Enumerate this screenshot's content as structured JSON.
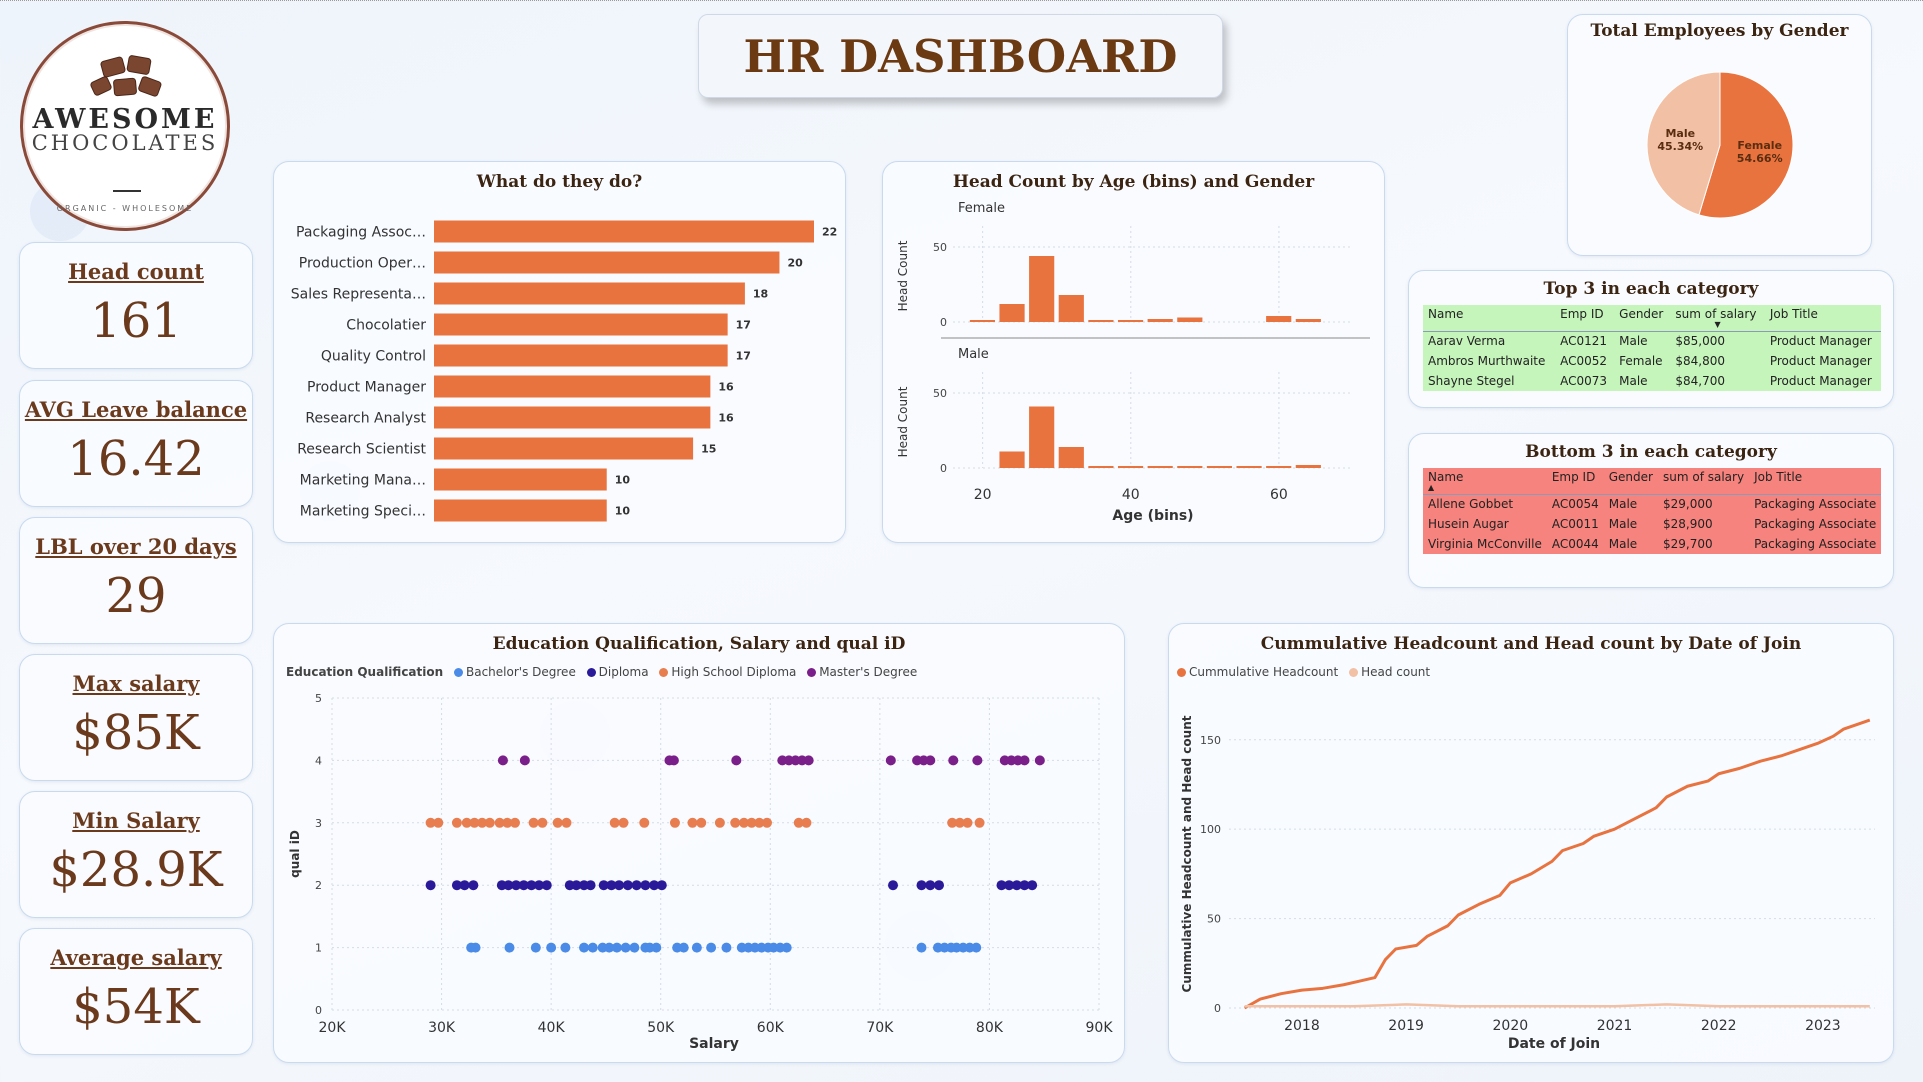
{
  "header": {
    "title": "HR DASHBOARD"
  },
  "logo": {
    "brand_line1": "AWESOME",
    "brand_line2": "CHOCOLATES",
    "tagline": "ORGANIC - WHOLESOME"
  },
  "kpis": [
    {
      "label": "Head count",
      "value": "161"
    },
    {
      "label": "AVG Leave balance",
      "value": "16.42"
    },
    {
      "label": "LBL over 20 days",
      "value": "29"
    },
    {
      "label": "Max salary",
      "value": "$85K"
    },
    {
      "label": "Min Salary",
      "value": "$28.9K"
    },
    {
      "label": "Average salary",
      "value": "$54K"
    }
  ],
  "colors": {
    "accent": "#e8733f",
    "accent_light": "#f2c0a4",
    "bachelor": "#4a8be8",
    "diploma": "#2a1a9a",
    "high_school": "#e87d4f",
    "masters": "#7a1f8a",
    "title_brown": "#6b3a12",
    "top_green": "#c6f5bc",
    "bottom_red": "#f6837d"
  },
  "tables": {
    "top": {
      "title": "Top 3 in each category",
      "headers": [
        "Name",
        "Emp ID",
        "Gender",
        "sum of salary",
        "Job Title"
      ],
      "rows": [
        [
          "Aarav Verma",
          "AC0121",
          "Male",
          "$85,000",
          "Product Manager"
        ],
        [
          "Ambros Murthwaite",
          "AC0052",
          "Female",
          "$84,800",
          "Product Manager"
        ],
        [
          "Shayne Stegel",
          "AC0073",
          "Male",
          "$84,700",
          "Product Manager"
        ]
      ]
    },
    "bottom": {
      "title": "Bottom 3 in each category",
      "headers": [
        "Name",
        "Emp ID",
        "Gender",
        "sum of salary",
        "Job Title"
      ],
      "rows": [
        [
          "Allene Gobbet",
          "AC0054",
          "Male",
          "$29,000",
          "Packaging Associate"
        ],
        [
          "Husein Augar",
          "AC0011",
          "Male",
          "$28,900",
          "Packaging Associate"
        ],
        [
          "Virginia McConville",
          "AC0044",
          "Male",
          "$29,700",
          "Packaging Associate"
        ]
      ]
    }
  },
  "chart_data": [
    {
      "type": "bar",
      "title": "What do they do?",
      "categories": [
        "Packaging Assoc…",
        "Production Oper…",
        "Sales Representa…",
        "Chocolatier",
        "Quality Control",
        "Product Manager",
        "Research Analyst",
        "Research Scientist",
        "Marketing Mana…",
        "Marketing Speci…"
      ],
      "values": [
        22,
        20,
        18,
        17,
        17,
        16,
        16,
        15,
        10,
        10
      ],
      "xlim": [
        0,
        22
      ]
    },
    {
      "type": "bar",
      "title": "Head Count by Age (bins) and Gender",
      "xlabel": "Age (bins)",
      "ylabel": "Head Count",
      "x_ticks": [
        20,
        40,
        60
      ],
      "y_ticks": [
        0,
        50
      ],
      "xlim": [
        16,
        70
      ],
      "ylim": [
        0,
        60
      ],
      "bin_starts": [
        18,
        22,
        26,
        30,
        34,
        38,
        42,
        46,
        50,
        54,
        58,
        62,
        66
      ],
      "panels": [
        {
          "name": "Female",
          "values": [
            1,
            12,
            44,
            18,
            1,
            1,
            2,
            3,
            0,
            0,
            4,
            2,
            0
          ]
        },
        {
          "name": "Male",
          "values": [
            0,
            11,
            41,
            14,
            1,
            1,
            1,
            1,
            1,
            1,
            1,
            2,
            0
          ]
        }
      ]
    },
    {
      "type": "pie",
      "title": "Total Employees by Gender",
      "slices": [
        {
          "name": "Female",
          "value": 54.66,
          "label": "54.66%",
          "color": "#e8733f"
        },
        {
          "name": "Male",
          "value": 45.34,
          "label": "45.34%",
          "color": "#f2c0a4"
        }
      ]
    },
    {
      "type": "scatter",
      "title": "Education Qualification, Salary and qual iD",
      "xlabel": "Salary",
      "ylabel": "qual iD",
      "legend_title": "Education Qualification",
      "xlim": [
        20,
        90
      ],
      "ylim": [
        0,
        5
      ],
      "x_ticks": [
        "20K",
        "30K",
        "40K",
        "50K",
        "60K",
        "70K",
        "80K",
        "90K"
      ],
      "y_ticks": [
        0,
        1,
        2,
        3,
        4,
        5
      ],
      "series": [
        {
          "name": "Bachelor's Degree",
          "color": "#4a8be8",
          "y": 1,
          "x": [
            32.7,
            33.1,
            36.2,
            38.6,
            40.0,
            41.3,
            43.0,
            43.8,
            44.7,
            45.3,
            46.0,
            46.8,
            47.6,
            48.6,
            49.0,
            49.6,
            51.5,
            52.1,
            53.3,
            54.6,
            56.0,
            57.4,
            58.0,
            58.6,
            59.2,
            59.8,
            60.3,
            60.9,
            61.5,
            73.8,
            75.3,
            75.9,
            76.5,
            77.0,
            77.6,
            78.2,
            78.8
          ]
        },
        {
          "name": "Diploma",
          "color": "#2a1a9a",
          "y": 2,
          "x": [
            29.0,
            31.4,
            32.1,
            32.9,
            35.5,
            36.1,
            36.8,
            37.5,
            38.2,
            38.9,
            39.6,
            41.7,
            42.3,
            43.0,
            43.6,
            44.8,
            45.5,
            46.2,
            47.0,
            47.8,
            48.6,
            49.4,
            50.1,
            71.2,
            73.8,
            74.6,
            75.4,
            81.1,
            81.8,
            82.5,
            83.2,
            83.9
          ]
        },
        {
          "name": "High School Diploma",
          "color": "#e87d4f",
          "y": 3,
          "x": [
            29.0,
            29.7,
            31.4,
            32.3,
            33.0,
            33.7,
            34.4,
            35.3,
            36.0,
            36.7,
            38.4,
            39.2,
            40.6,
            41.4,
            45.8,
            46.6,
            48.5,
            51.3,
            52.9,
            53.7,
            55.4,
            56.8,
            57.6,
            58.3,
            59.0,
            59.7,
            62.6,
            63.3,
            76.6,
            77.3,
            78.0,
            79.1
          ]
        },
        {
          "name": "Master's Degree",
          "color": "#7a1f8a",
          "y": 4,
          "x": [
            35.6,
            37.6,
            50.8,
            51.2,
            56.9,
            61.1,
            61.7,
            62.3,
            62.9,
            63.5,
            71.0,
            73.4,
            74.0,
            74.6,
            76.7,
            78.9,
            81.4,
            82.0,
            82.6,
            83.2,
            84.6
          ]
        }
      ]
    },
    {
      "type": "line",
      "title": "Cummulative Headcount and Head count by Date of Join",
      "xlabel": "Date of Join",
      "ylabel": "Cummulative Headcount and Head count",
      "xlim": [
        2017.3,
        2023.5
      ],
      "ylim": [
        0,
        170
      ],
      "x_ticks": [
        "2018",
        "2019",
        "2020",
        "2021",
        "2022",
        "2023"
      ],
      "x_tick_values": [
        2018,
        2019,
        2020,
        2021,
        2022,
        2023
      ],
      "y_ticks": [
        0,
        50,
        100,
        150
      ],
      "series": [
        {
          "name": "Cummulative Headcount",
          "color": "#e8733f",
          "x": [
            2017.45,
            2017.6,
            2017.8,
            2018.0,
            2018.2,
            2018.4,
            2018.55,
            2018.7,
            2018.8,
            2018.9,
            2019.1,
            2019.2,
            2019.4,
            2019.5,
            2019.7,
            2019.9,
            2020.0,
            2020.2,
            2020.4,
            2020.5,
            2020.7,
            2020.8,
            2021.0,
            2021.2,
            2021.4,
            2021.5,
            2021.7,
            2021.9,
            2022.0,
            2022.2,
            2022.4,
            2022.6,
            2022.8,
            2022.95,
            2023.1,
            2023.2,
            2023.35,
            2023.45
          ],
          "y": [
            0,
            5,
            8,
            10,
            11,
            13,
            15,
            17,
            27,
            33,
            35,
            40,
            46,
            52,
            58,
            63,
            70,
            75,
            82,
            88,
            92,
            96,
            100,
            106,
            112,
            118,
            124,
            127,
            131,
            134,
            138,
            141,
            145,
            148,
            152,
            156,
            159,
            161
          ]
        },
        {
          "name": "Head count",
          "color": "#f2c0a4",
          "x": [
            2017.45,
            2018.0,
            2018.5,
            2019.0,
            2019.5,
            2020.0,
            2020.5,
            2021.0,
            2021.5,
            2022.0,
            2022.5,
            2023.0,
            2023.45
          ],
          "y": [
            1,
            1,
            1,
            2,
            1,
            1,
            1,
            1,
            2,
            1,
            1,
            1,
            1
          ]
        }
      ]
    }
  ]
}
